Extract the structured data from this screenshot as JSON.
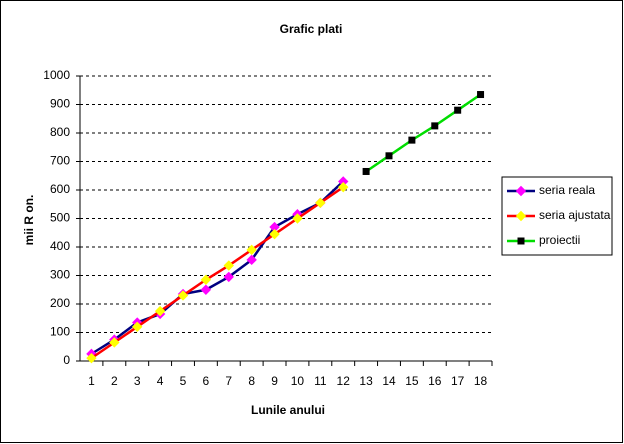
{
  "chart_data": {
    "type": "line",
    "title": "Grafic plati",
    "x_label": "Lunile anului",
    "y_label": "mii R on.",
    "categories": [
      1,
      2,
      3,
      4,
      5,
      6,
      7,
      8,
      9,
      10,
      11,
      12,
      13,
      14,
      15,
      16,
      17,
      18
    ],
    "series": [
      {
        "name": "seria reala",
        "color": "#000080",
        "marker": "diamond",
        "marker_color": "#ff00ff",
        "values": [
          25,
          75,
          135,
          165,
          235,
          250,
          295,
          355,
          470,
          515,
          555,
          630,
          null,
          null,
          null,
          null,
          null,
          null
        ]
      },
      {
        "name": "seria ajustata",
        "color": "#ff0000",
        "marker": "diamond",
        "marker_color": "#ffff00",
        "values": [
          10,
          65,
          120,
          175,
          230,
          285,
          335,
          390,
          445,
          500,
          555,
          610,
          null,
          null,
          null,
          null,
          null,
          null
        ]
      },
      {
        "name": "proiectii",
        "color": "#00dd00",
        "marker": "square",
        "marker_color": "#000000",
        "values": [
          null,
          null,
          null,
          null,
          null,
          null,
          null,
          null,
          null,
          null,
          null,
          null,
          665,
          720,
          775,
          825,
          880,
          935
        ]
      }
    ],
    "ylim": [
      0,
      1000
    ],
    "yticks": [
      0,
      100,
      200,
      300,
      400,
      500,
      600,
      700,
      800,
      900,
      1000
    ],
    "grid": true,
    "legend": "right"
  }
}
